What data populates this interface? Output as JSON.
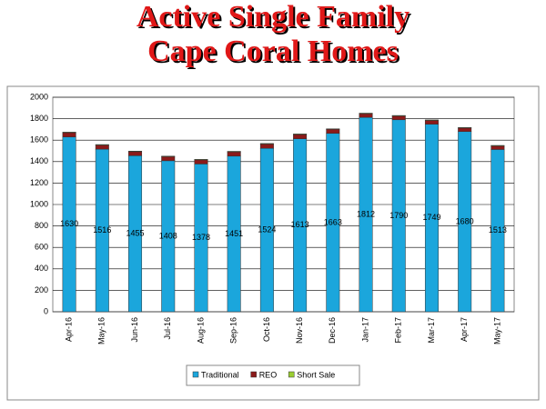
{
  "chart_data": {
    "type": "bar",
    "stacked": true,
    "title": "Active Single Family Cape Coral Homes",
    "categories": [
      "Apr-16",
      "May-16",
      "Jun-16",
      "Jul-16",
      "Aug-16",
      "Sep-16",
      "Oct-16",
      "Nov-16",
      "Dec-16",
      "Jan-17",
      "Feb-17",
      "Mar-17",
      "Apr-17",
      "May-17"
    ],
    "series": [
      {
        "name": "Traditional",
        "color": "#1ba6dc",
        "values": [
          1630,
          1516,
          1455,
          1408,
          1378,
          1451,
          1524,
          1613,
          1663,
          1812,
          1790,
          1749,
          1680,
          1513
        ]
      },
      {
        "name": "REO",
        "color": "#8b1a1a",
        "values": [
          40,
          38,
          38,
          38,
          38,
          40,
          40,
          40,
          38,
          35,
          35,
          35,
          33,
          33
        ]
      },
      {
        "name": "Short Sale",
        "color": "#9acd32",
        "values": [
          5,
          5,
          5,
          5,
          5,
          5,
          5,
          5,
          5,
          5,
          5,
          5,
          5,
          5
        ]
      }
    ],
    "ylim": [
      0,
      2000
    ],
    "yticks": [
      0,
      200,
      400,
      600,
      800,
      1000,
      1200,
      1400,
      1600,
      1800,
      2000
    ],
    "grid": true,
    "legend": "bottom"
  }
}
